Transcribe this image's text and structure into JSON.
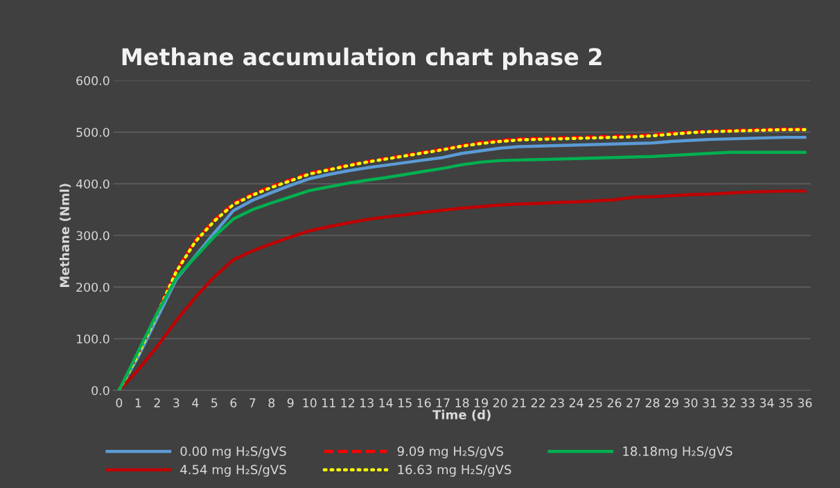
{
  "chart_data": {
    "type": "line",
    "title": "Methane accumulation chart phase 2",
    "xlabel": "Time (d)",
    "ylabel": "Methane (Nml)",
    "categories": [
      "0",
      "1",
      "2",
      "3",
      "4",
      "5",
      "6",
      "7",
      "8",
      "9",
      "10",
      "11",
      "12",
      "13",
      "14",
      "15",
      "16",
      "17",
      "18",
      "19",
      "20",
      "21",
      "22",
      "23",
      "24",
      "25",
      "26",
      "27",
      "28",
      "29",
      "30",
      "31",
      "32",
      "33",
      "34",
      "35",
      "36"
    ],
    "ylim": [
      0,
      600
    ],
    "yticks": [
      {
        "value": 0,
        "label": "0.0"
      },
      {
        "value": 100,
        "label": "100.0"
      },
      {
        "value": 200,
        "label": "200.0"
      },
      {
        "value": 300,
        "label": "300.0"
      },
      {
        "value": 400,
        "label": "400.0"
      },
      {
        "value": 500,
        "label": "500.0"
      },
      {
        "value": 600,
        "label": "600.0"
      }
    ],
    "grid": "y",
    "legend": "bottom",
    "marker": "none",
    "series": [
      {
        "name": "0.00 mg H₂S/gVS",
        "color": "#5b9bd5",
        "line_style": "solid",
        "values": [
          0,
          65,
          140,
          215,
          260,
          305,
          348,
          368,
          383,
          397,
          410,
          418,
          425,
          431,
          436,
          441,
          446,
          451,
          459,
          464,
          469,
          472,
          473,
          474,
          475,
          476,
          477,
          478,
          479,
          482,
          484,
          486,
          487,
          488,
          489,
          490,
          490
        ]
      },
      {
        "name": "4.54 mg H₂S/gVS",
        "color": "#c00000",
        "line_style": "solid",
        "values": [
          0,
          40,
          85,
          135,
          180,
          220,
          253,
          270,
          284,
          297,
          309,
          317,
          324,
          331,
          336,
          340,
          345,
          349,
          353,
          356,
          359,
          361,
          362,
          364,
          365,
          367,
          369,
          374,
          375,
          377,
          379,
          380,
          382,
          384,
          385,
          386,
          386
        ]
      },
      {
        "name": "9.09 mg H₂S/gVS",
        "color": "#ff0000",
        "line_style": "dashed",
        "values": [
          0,
          72,
          150,
          232,
          290,
          330,
          362,
          380,
          395,
          408,
          421,
          428,
          436,
          443,
          449,
          455,
          461,
          467,
          474,
          480,
          484,
          487,
          488,
          489,
          490,
          491,
          492,
          493,
          495,
          498,
          500,
          502,
          503,
          504,
          505,
          506,
          506
        ]
      },
      {
        "name": "16.63 mg H₂S/gVS",
        "color": "#ffff00",
        "line_style": "dotted",
        "values": [
          0,
          70,
          148,
          230,
          288,
          328,
          360,
          378,
          393,
          406,
          419,
          427,
          435,
          442,
          448,
          454,
          460,
          466,
          473,
          478,
          482,
          485,
          486,
          487,
          488,
          489,
          490,
          491,
          493,
          496,
          499,
          501,
          502,
          503,
          504,
          505,
          505
        ]
      },
      {
        "name": "18.18mg H₂S/gVS",
        "color": "#00b050",
        "line_style": "solid",
        "values": [
          0,
          75,
          150,
          218,
          258,
          298,
          332,
          350,
          363,
          375,
          387,
          394,
          401,
          407,
          412,
          418,
          424,
          430,
          437,
          442,
          445,
          446,
          447,
          448,
          449,
          450,
          451,
          452,
          453,
          455,
          457,
          459,
          461,
          461,
          461,
          461,
          461
        ]
      }
    ]
  }
}
